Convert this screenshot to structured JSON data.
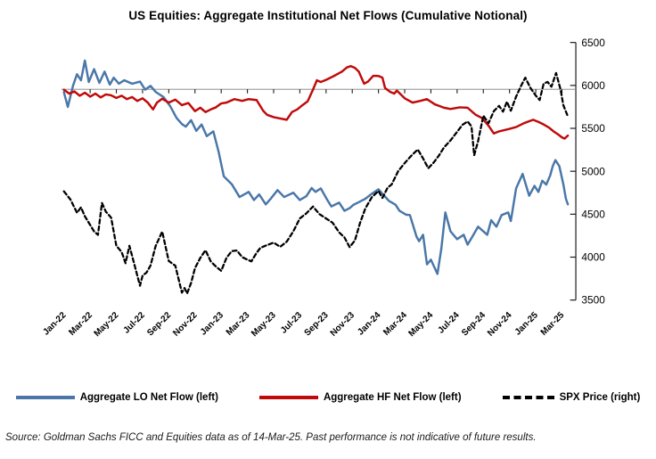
{
  "title": "US Equities: Aggregate Institutional Net Flows (Cumulative Notional)",
  "source_note": "Source: Goldman Sachs FICC and Equities data as of 14-Mar-25. Past performance is not indicative of future results.",
  "colors": {
    "lo_line": "#4a77a8",
    "hf_line": "#c00a0a",
    "spx_line": "#000000",
    "zero_line": "#808080",
    "axis": "#1a1a1a"
  },
  "chart_data": {
    "type": "line",
    "title": "US Equities: Aggregate Institutional Net Flows (Cumulative Notional)",
    "grid": false,
    "legend_position": "bottom",
    "x_axis": {
      "tick_labels": [
        "Jan-22",
        "Mar-22",
        "May-22",
        "Jul-22",
        "Sep-22",
        "Nov-22",
        "Jan-23",
        "Mar-23",
        "May-23",
        "Jul-23",
        "Sep-23",
        "Nov-23",
        "Jan-24",
        "Mar-24",
        "May-24",
        "Jul-24",
        "Sep-24",
        "Nov-24",
        "Jan-25",
        "Mar-25"
      ],
      "months_per_tick": 2,
      "label_rotation_deg": -45
    },
    "right_axis": {
      "title": "SPX Price",
      "min": 3500,
      "max": 6500,
      "tick_labels": [
        6500,
        6000,
        5500,
        5000,
        4500,
        4000,
        3500
      ]
    },
    "left_axis": {
      "labeled": false,
      "note": "Cumulative net flow axis is unlabeled; only its zero line is drawn. Flow series values below are expressed as right-axis-equivalent plot positions.",
      "zero_at_right_axis_equivalent": 5955
    },
    "series": [
      {
        "name": "Aggregate LO Net Flow (left)",
        "axis": "left",
        "style": "solid",
        "color": "#4a77a8",
        "points": [
          [
            0,
            5920
          ],
          [
            0.3,
            5750
          ],
          [
            0.7,
            6000
          ],
          [
            1,
            6130
          ],
          [
            1.3,
            6060
          ],
          [
            1.6,
            6290
          ],
          [
            1.9,
            6040
          ],
          [
            2.3,
            6190
          ],
          [
            2.7,
            6030
          ],
          [
            3.1,
            6160
          ],
          [
            3.5,
            6010
          ],
          [
            3.8,
            6090
          ],
          [
            4.2,
            6020
          ],
          [
            4.6,
            6060
          ],
          [
            5.2,
            6020
          ],
          [
            5.8,
            6045
          ],
          [
            6.2,
            5950
          ],
          [
            6.6,
            5995
          ],
          [
            7,
            5925
          ],
          [
            7.6,
            5865
          ],
          [
            8.1,
            5760
          ],
          [
            8.6,
            5620
          ],
          [
            9,
            5550
          ],
          [
            9.3,
            5520
          ],
          [
            9.7,
            5595
          ],
          [
            10.1,
            5470
          ],
          [
            10.5,
            5545
          ],
          [
            10.9,
            5410
          ],
          [
            11.4,
            5465
          ],
          [
            11.8,
            5230
          ],
          [
            12.2,
            4940
          ],
          [
            12.8,
            4850
          ],
          [
            13.4,
            4700
          ],
          [
            14.1,
            4760
          ],
          [
            14.5,
            4665
          ],
          [
            14.9,
            4730
          ],
          [
            15.4,
            4615
          ],
          [
            15.8,
            4685
          ],
          [
            16.3,
            4780
          ],
          [
            16.8,
            4700
          ],
          [
            17.5,
            4750
          ],
          [
            18,
            4665
          ],
          [
            18.5,
            4710
          ],
          [
            18.9,
            4805
          ],
          [
            19.2,
            4760
          ],
          [
            19.6,
            4800
          ],
          [
            20.1,
            4665
          ],
          [
            20.4,
            4590
          ],
          [
            21,
            4635
          ],
          [
            21.4,
            4540
          ],
          [
            21.8,
            4570
          ],
          [
            22.1,
            4610
          ],
          [
            22.5,
            4640
          ],
          [
            23,
            4680
          ],
          [
            23.5,
            4740
          ],
          [
            24,
            4790
          ],
          [
            24.8,
            4655
          ],
          [
            25.3,
            4610
          ],
          [
            25.6,
            4540
          ],
          [
            26.1,
            4495
          ],
          [
            26.4,
            4490
          ],
          [
            26.9,
            4240
          ],
          [
            27.1,
            4185
          ],
          [
            27.4,
            4260
          ],
          [
            27.7,
            3915
          ],
          [
            28,
            3970
          ],
          [
            28.3,
            3870
          ],
          [
            28.5,
            3805
          ],
          [
            28.8,
            4100
          ],
          [
            29.1,
            4520
          ],
          [
            29.5,
            4300
          ],
          [
            30,
            4210
          ],
          [
            30.5,
            4260
          ],
          [
            30.8,
            4145
          ],
          [
            31.2,
            4250
          ],
          [
            31.6,
            4355
          ],
          [
            32.3,
            4260
          ],
          [
            32.6,
            4430
          ],
          [
            33,
            4355
          ],
          [
            33.4,
            4490
          ],
          [
            33.9,
            4520
          ],
          [
            34.1,
            4420
          ],
          [
            34.5,
            4800
          ],
          [
            35,
            4970
          ],
          [
            35.5,
            4715
          ],
          [
            35.9,
            4830
          ],
          [
            36.2,
            4760
          ],
          [
            36.5,
            4890
          ],
          [
            36.8,
            4845
          ],
          [
            37.1,
            4950
          ],
          [
            37.3,
            5060
          ],
          [
            37.5,
            5130
          ],
          [
            37.8,
            5060
          ],
          [
            38.1,
            4850
          ],
          [
            38.3,
            4680
          ],
          [
            38.45,
            4615
          ]
        ]
      },
      {
        "name": "Aggregate HF Net Flow (left)",
        "axis": "left",
        "style": "solid",
        "color": "#c00a0a",
        "points": [
          [
            0,
            5950
          ],
          [
            0.4,
            5905
          ],
          [
            0.8,
            5930
          ],
          [
            1.2,
            5880
          ],
          [
            1.6,
            5915
          ],
          [
            2,
            5870
          ],
          [
            2.4,
            5905
          ],
          [
            2.8,
            5860
          ],
          [
            3.2,
            5895
          ],
          [
            3.6,
            5885
          ],
          [
            4,
            5855
          ],
          [
            4.4,
            5880
          ],
          [
            4.8,
            5840
          ],
          [
            5.2,
            5865
          ],
          [
            5.6,
            5820
          ],
          [
            6,
            5850
          ],
          [
            6.4,
            5800
          ],
          [
            6.8,
            5720
          ],
          [
            7.1,
            5800
          ],
          [
            7.5,
            5845
          ],
          [
            8,
            5800
          ],
          [
            8.5,
            5835
          ],
          [
            9,
            5770
          ],
          [
            9.5,
            5795
          ],
          [
            10,
            5700
          ],
          [
            10.4,
            5740
          ],
          [
            10.8,
            5690
          ],
          [
            11.2,
            5720
          ],
          [
            11.6,
            5745
          ],
          [
            12,
            5790
          ],
          [
            12.4,
            5800
          ],
          [
            13,
            5840
          ],
          [
            13.6,
            5820
          ],
          [
            14.1,
            5840
          ],
          [
            14.7,
            5830
          ],
          [
            15.2,
            5705
          ],
          [
            15.5,
            5658
          ],
          [
            16,
            5630
          ],
          [
            16.5,
            5615
          ],
          [
            17,
            5600
          ],
          [
            17.4,
            5690
          ],
          [
            17.8,
            5720
          ],
          [
            18.2,
            5770
          ],
          [
            18.6,
            5815
          ],
          [
            19,
            5950
          ],
          [
            19.3,
            6060
          ],
          [
            19.6,
            6040
          ],
          [
            20,
            6065
          ],
          [
            20.6,
            6110
          ],
          [
            21.2,
            6160
          ],
          [
            21.6,
            6210
          ],
          [
            21.9,
            6225
          ],
          [
            22.2,
            6205
          ],
          [
            22.5,
            6160
          ],
          [
            22.9,
            6020
          ],
          [
            23.2,
            6045
          ],
          [
            23.6,
            6112
          ],
          [
            24,
            6110
          ],
          [
            24.3,
            6090
          ],
          [
            24.5,
            5970
          ],
          [
            24.9,
            5925
          ],
          [
            25.2,
            5905
          ],
          [
            25.4,
            5940
          ],
          [
            26,
            5850
          ],
          [
            26.6,
            5800
          ],
          [
            27.2,
            5820
          ],
          [
            27.7,
            5840
          ],
          [
            28.3,
            5780
          ],
          [
            29,
            5740
          ],
          [
            29.5,
            5725
          ],
          [
            30.2,
            5745
          ],
          [
            30.8,
            5740
          ],
          [
            31.4,
            5660
          ],
          [
            31.9,
            5620
          ],
          [
            32.4,
            5530
          ],
          [
            32.8,
            5440
          ],
          [
            33.2,
            5465
          ],
          [
            33.9,
            5490
          ],
          [
            34.5,
            5515
          ],
          [
            35.1,
            5560
          ],
          [
            35.8,
            5600
          ],
          [
            36.2,
            5575
          ],
          [
            36.6,
            5545
          ],
          [
            37,
            5510
          ],
          [
            37.4,
            5460
          ],
          [
            37.7,
            5430
          ],
          [
            38,
            5395
          ],
          [
            38.2,
            5380
          ],
          [
            38.45,
            5415
          ]
        ]
      },
      {
        "name": "SPX Price (right)",
        "axis": "right",
        "style": "dashed",
        "color": "#000000",
        "points": [
          [
            0,
            4766
          ],
          [
            0.5,
            4670
          ],
          [
            1,
            4516
          ],
          [
            1.3,
            4580
          ],
          [
            1.6,
            4475
          ],
          [
            2,
            4374
          ],
          [
            2.3,
            4300
          ],
          [
            2.6,
            4260
          ],
          [
            2.9,
            4630
          ],
          [
            3.2,
            4530
          ],
          [
            3.6,
            4460
          ],
          [
            4,
            4132
          ],
          [
            4.4,
            4060
          ],
          [
            4.7,
            3930
          ],
          [
            5,
            4132
          ],
          [
            5.4,
            3900
          ],
          [
            5.8,
            3667
          ],
          [
            6,
            3785
          ],
          [
            6.3,
            3820
          ],
          [
            6.6,
            3900
          ],
          [
            7,
            4130
          ],
          [
            7.5,
            4297
          ],
          [
            8,
            3955
          ],
          [
            8.5,
            3900
          ],
          [
            9,
            3586
          ],
          [
            9.2,
            3640
          ],
          [
            9.4,
            3577
          ],
          [
            9.7,
            3700
          ],
          [
            10,
            3872
          ],
          [
            10.4,
            3990
          ],
          [
            10.8,
            4080
          ],
          [
            11.2,
            3950
          ],
          [
            11.6,
            3890
          ],
          [
            12,
            3840
          ],
          [
            12.4,
            3990
          ],
          [
            12.8,
            4070
          ],
          [
            13.2,
            4077
          ],
          [
            13.6,
            4000
          ],
          [
            14,
            3970
          ],
          [
            14.3,
            3950
          ],
          [
            14.7,
            4050
          ],
          [
            15,
            4109
          ],
          [
            15.5,
            4140
          ],
          [
            16,
            4169
          ],
          [
            16.5,
            4120
          ],
          [
            17,
            4180
          ],
          [
            17.5,
            4300
          ],
          [
            18,
            4450
          ],
          [
            18.5,
            4510
          ],
          [
            19,
            4589
          ],
          [
            19.5,
            4500
          ],
          [
            20,
            4450
          ],
          [
            20.5,
            4400
          ],
          [
            21,
            4288
          ],
          [
            21.4,
            4230
          ],
          [
            21.8,
            4117
          ],
          [
            22.2,
            4194
          ],
          [
            22.6,
            4400
          ],
          [
            23,
            4568
          ],
          [
            23.5,
            4700
          ],
          [
            24,
            4770
          ],
          [
            24.3,
            4690
          ],
          [
            24.7,
            4810
          ],
          [
            25,
            4846
          ],
          [
            25.5,
            5000
          ],
          [
            26,
            5096
          ],
          [
            26.5,
            5180
          ],
          [
            27,
            5254
          ],
          [
            27.4,
            5150
          ],
          [
            27.8,
            5035
          ],
          [
            28.2,
            5100
          ],
          [
            28.6,
            5180
          ],
          [
            29,
            5278
          ],
          [
            29.5,
            5360
          ],
          [
            30,
            5460
          ],
          [
            30.4,
            5540
          ],
          [
            30.8,
            5580
          ],
          [
            31.1,
            5522
          ],
          [
            31.3,
            5186
          ],
          [
            31.6,
            5350
          ],
          [
            32,
            5648
          ],
          [
            32.4,
            5560
          ],
          [
            32.8,
            5700
          ],
          [
            33.2,
            5762
          ],
          [
            33.5,
            5695
          ],
          [
            33.8,
            5810
          ],
          [
            34.1,
            5705
          ],
          [
            34.5,
            5870
          ],
          [
            34.9,
            6000
          ],
          [
            35.2,
            6090
          ],
          [
            35.6,
            5970
          ],
          [
            36,
            5882
          ],
          [
            36.3,
            5830
          ],
          [
            36.6,
            6020
          ],
          [
            36.9,
            6041
          ],
          [
            37.2,
            5985
          ],
          [
            37.55,
            6144
          ],
          [
            37.9,
            5950
          ],
          [
            38.1,
            5770
          ],
          [
            38.45,
            5639
          ]
        ]
      }
    ]
  }
}
